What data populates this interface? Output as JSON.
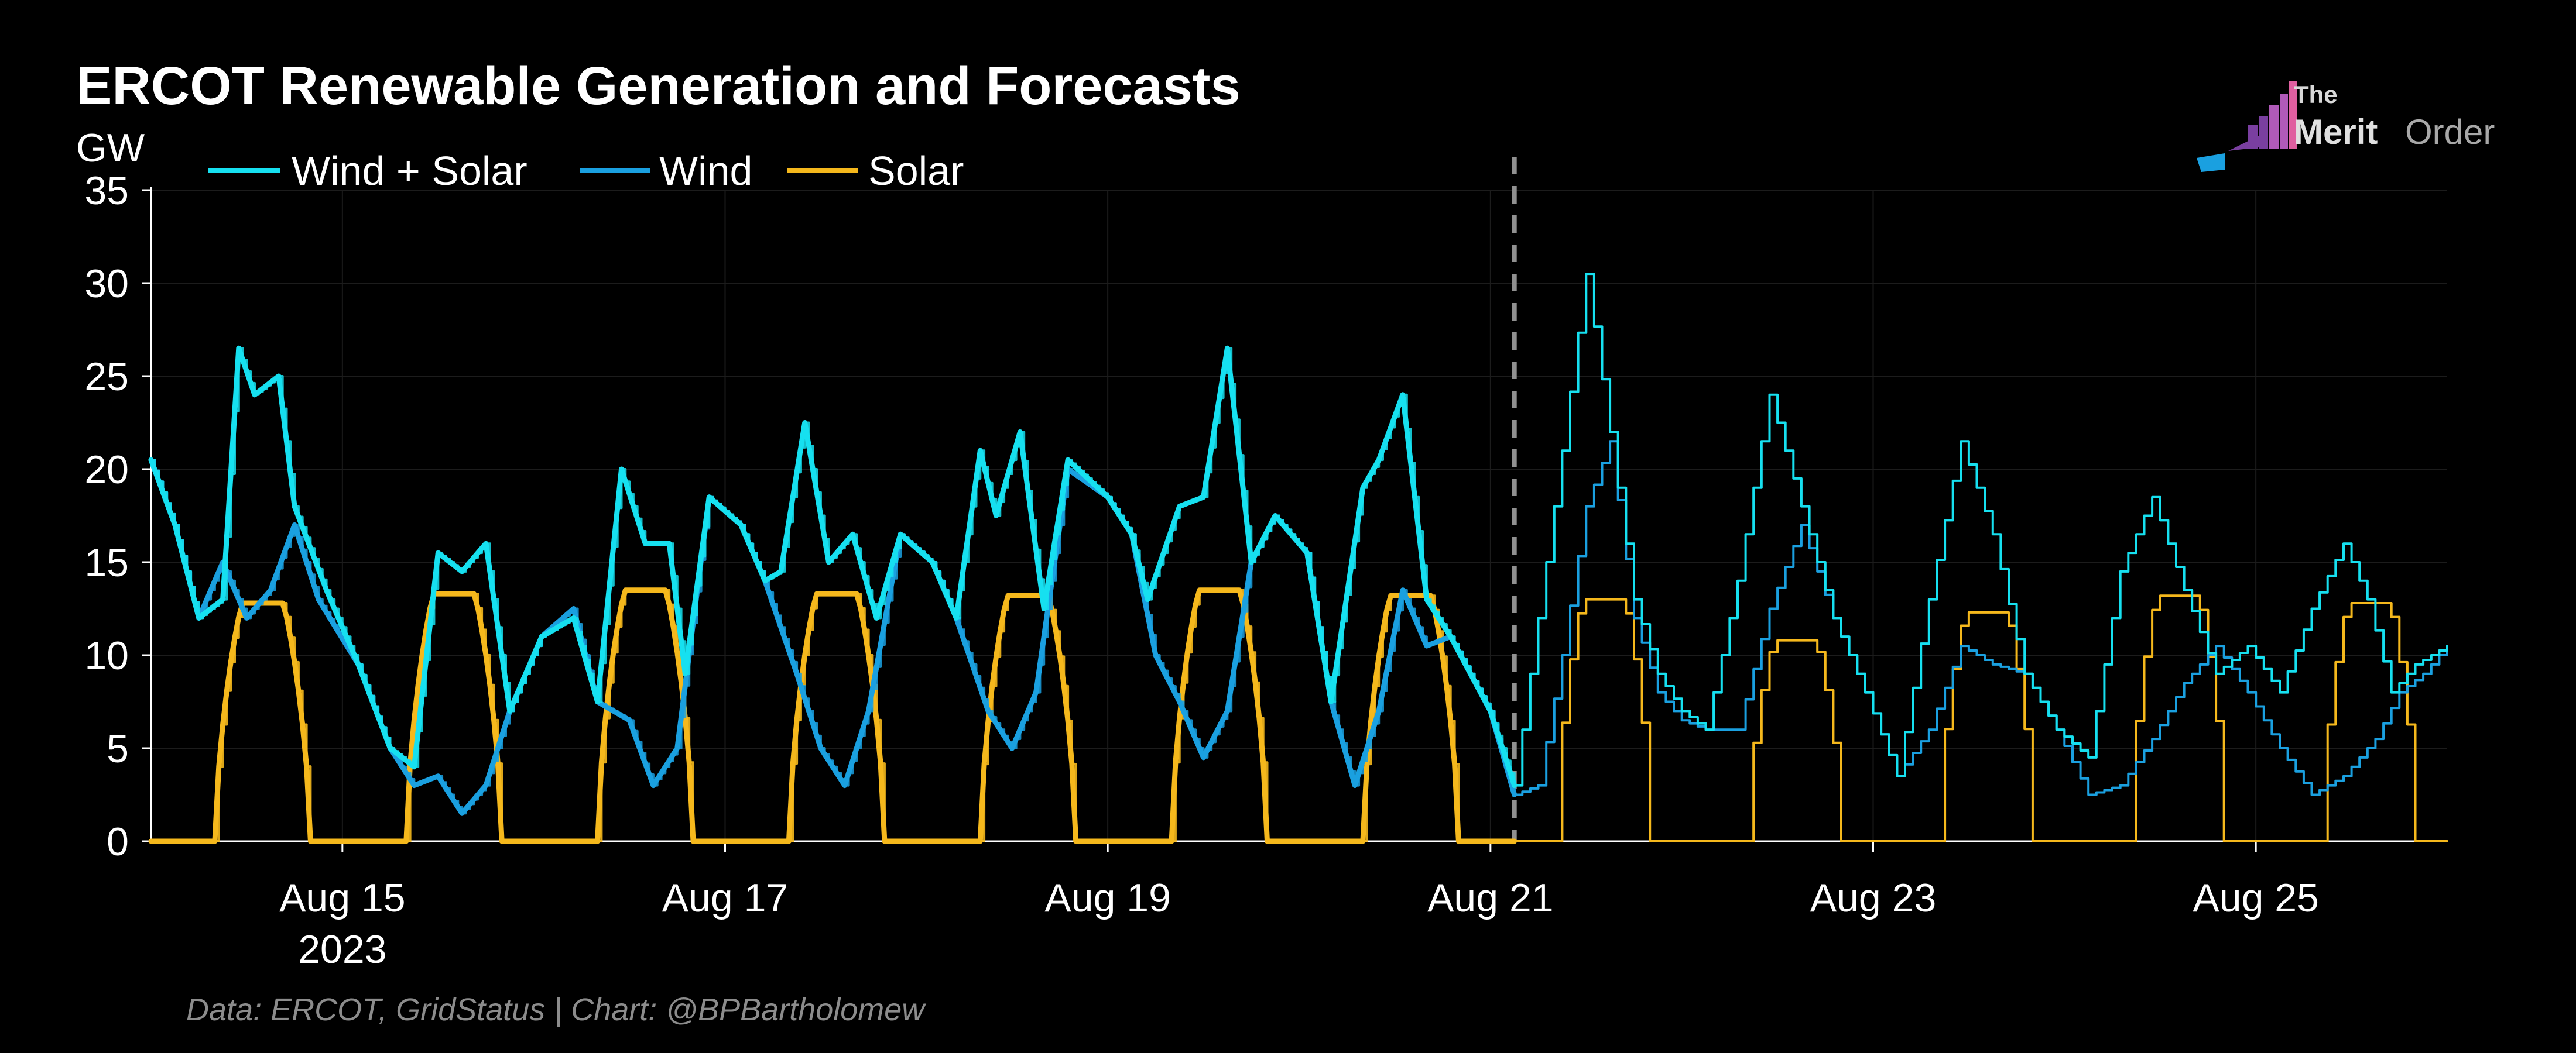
{
  "chart_data": {
    "type": "line",
    "title": "ERCOT Renewable Generation and Forecasts",
    "ylabel": "GW",
    "source": "Data: ERCOT, GridStatus | Chart: @BPBartholomew",
    "ylim": [
      0,
      35
    ],
    "yticks": [
      "0",
      "5",
      "10",
      "15",
      "20",
      "25",
      "30",
      "35"
    ],
    "xlim": [
      "2023-08-14",
      "2023-08-26"
    ],
    "x_ticks": [
      {
        "date": "2023-08-15",
        "label": "Aug 15",
        "sublabel": "2023"
      },
      {
        "date": "2023-08-17",
        "label": "Aug 17",
        "sublabel": ""
      },
      {
        "date": "2023-08-19",
        "label": "Aug 19",
        "sublabel": ""
      },
      {
        "date": "2023-08-21",
        "label": "Aug 21",
        "sublabel": ""
      },
      {
        "date": "2023-08-23",
        "label": "Aug 23",
        "sublabel": ""
      },
      {
        "date": "2023-08-25",
        "label": "Aug 25",
        "sublabel": ""
      }
    ],
    "forecast_start": "2023-08-21 03:00",
    "grid": true,
    "legend_position": "top-left",
    "series": [
      {
        "name": "Wind + Solar",
        "color": "#16e0f0",
        "actual": [
          [
            "2023-08-14 00:00",
            20.5
          ],
          [
            "2023-08-14 03:00",
            17.0
          ],
          [
            "2023-08-14 06:00",
            12.0
          ],
          [
            "2023-08-14 09:00",
            13.0
          ],
          [
            "2023-08-14 11:00",
            26.5
          ],
          [
            "2023-08-14 13:00",
            24.0
          ],
          [
            "2023-08-14 16:00",
            25.0
          ],
          [
            "2023-08-14 18:00",
            18.0
          ],
          [
            "2023-08-14 22:00",
            13.5
          ],
          [
            "2023-08-15 02:00",
            9.5
          ],
          [
            "2023-08-15 06:00",
            5.0
          ],
          [
            "2023-08-15 09:00",
            4.0
          ],
          [
            "2023-08-15 12:00",
            15.5
          ],
          [
            "2023-08-15 15:00",
            14.5
          ],
          [
            "2023-08-15 18:00",
            16.0
          ],
          [
            "2023-08-15 21:00",
            7.0
          ],
          [
            "2023-08-16 01:00",
            11.0
          ],
          [
            "2023-08-16 05:00",
            12.0
          ],
          [
            "2023-08-16 08:00",
            7.5
          ],
          [
            "2023-08-16 11:00",
            20.0
          ],
          [
            "2023-08-16 14:00",
            16.0
          ],
          [
            "2023-08-16 17:00",
            16.0
          ],
          [
            "2023-08-16 19:00",
            9.0
          ],
          [
            "2023-08-16 22:00",
            18.5
          ],
          [
            "2023-08-17 02:00",
            17.0
          ],
          [
            "2023-08-17 05:00",
            14.0
          ],
          [
            "2023-08-17 07:00",
            14.5
          ],
          [
            "2023-08-17 10:00",
            22.5
          ],
          [
            "2023-08-17 13:00",
            15.0
          ],
          [
            "2023-08-17 16:00",
            16.5
          ],
          [
            "2023-08-17 19:00",
            12.0
          ],
          [
            "2023-08-17 22:00",
            16.5
          ],
          [
            "2023-08-18 02:00",
            15.0
          ],
          [
            "2023-08-18 05:00",
            12.0
          ],
          [
            "2023-08-18 08:00",
            21.0
          ],
          [
            "2023-08-18 10:00",
            17.5
          ],
          [
            "2023-08-18 13:00",
            22.0
          ],
          [
            "2023-08-18 16:00",
            12.5
          ],
          [
            "2023-08-18 19:00",
            20.5
          ],
          [
            "2023-08-19 00:00",
            18.5
          ],
          [
            "2023-08-19 03:00",
            16.5
          ],
          [
            "2023-08-19 05:00",
            13.0
          ],
          [
            "2023-08-19 09:00",
            18.0
          ],
          [
            "2023-08-19 12:00",
            18.5
          ],
          [
            "2023-08-19 15:00",
            26.5
          ],
          [
            "2023-08-19 18:00",
            15.0
          ],
          [
            "2023-08-19 21:00",
            17.5
          ],
          [
            "2023-08-20 01:00",
            15.5
          ],
          [
            "2023-08-20 04:00",
            7.5
          ],
          [
            "2023-08-20 08:00",
            19.0
          ],
          [
            "2023-08-20 10:00",
            20.5
          ],
          [
            "2023-08-20 13:00",
            24.0
          ],
          [
            "2023-08-20 16:00",
            13.0
          ],
          [
            "2023-08-20 19:00",
            11.0
          ],
          [
            "2023-08-21 00:00",
            7.0
          ],
          [
            "2023-08-21 03:00",
            3.0
          ]
        ],
        "forecast": [
          [
            "2023-08-21 03:00",
            3.0
          ],
          [
            "2023-08-21 06:00",
            12.0
          ],
          [
            "2023-08-21 09:00",
            21.0
          ],
          [
            "2023-08-21 12:00",
            30.5
          ],
          [
            "2023-08-21 15:00",
            22.0
          ],
          [
            "2023-08-21 18:00",
            13.0
          ],
          [
            "2023-08-21 21:00",
            9.0
          ],
          [
            "2023-08-22 00:00",
            7.0
          ],
          [
            "2023-08-22 03:00",
            6.0
          ],
          [
            "2023-08-22 07:00",
            14.0
          ],
          [
            "2023-08-22 11:00",
            24.0
          ],
          [
            "2023-08-22 15:00",
            18.0
          ],
          [
            "2023-08-22 19:00",
            12.0
          ],
          [
            "2023-08-22 23:00",
            8.0
          ],
          [
            "2023-08-23 03:00",
            3.5
          ],
          [
            "2023-08-23 07:00",
            13.0
          ],
          [
            "2023-08-23 11:00",
            21.5
          ],
          [
            "2023-08-23 15:00",
            16.5
          ],
          [
            "2023-08-23 19:00",
            9.0
          ],
          [
            "2023-08-23 23:00",
            6.0
          ],
          [
            "2023-08-24 03:00",
            4.5
          ],
          [
            "2023-08-24 07:00",
            14.5
          ],
          [
            "2023-08-24 11:00",
            18.5
          ],
          [
            "2023-08-24 15:00",
            13.5
          ],
          [
            "2023-08-24 19:00",
            9.0
          ],
          [
            "2023-08-24 23:00",
            10.5
          ],
          [
            "2023-08-25 03:00",
            8.0
          ],
          [
            "2023-08-25 07:00",
            12.5
          ],
          [
            "2023-08-25 11:00",
            16.0
          ],
          [
            "2023-08-25 14:00",
            13.0
          ],
          [
            "2023-08-25 17:00",
            8.0
          ],
          [
            "2023-08-25 20:00",
            9.5
          ],
          [
            "2023-08-26 00:00",
            10.5
          ]
        ]
      },
      {
        "name": "Wind",
        "color": "#1aa0e0",
        "actual": [
          [
            "2023-08-14 00:00",
            20.5
          ],
          [
            "2023-08-14 03:00",
            17.0
          ],
          [
            "2023-08-14 06:00",
            12.0
          ],
          [
            "2023-08-14 09:00",
            15.0
          ],
          [
            "2023-08-14 12:00",
            12.0
          ],
          [
            "2023-08-14 15:00",
            13.5
          ],
          [
            "2023-08-14 18:00",
            17.0
          ],
          [
            "2023-08-14 21:00",
            13.0
          ],
          [
            "2023-08-15 02:00",
            9.5
          ],
          [
            "2023-08-15 06:00",
            5.0
          ],
          [
            "2023-08-15 09:00",
            3.0
          ],
          [
            "2023-08-15 12:00",
            3.5
          ],
          [
            "2023-08-15 15:00",
            1.5
          ],
          [
            "2023-08-15 18:00",
            3.0
          ],
          [
            "2023-08-15 21:00",
            7.0
          ],
          [
            "2023-08-16 01:00",
            11.0
          ],
          [
            "2023-08-16 05:00",
            12.5
          ],
          [
            "2023-08-16 08:00",
            7.5
          ],
          [
            "2023-08-16 12:00",
            6.5
          ],
          [
            "2023-08-16 15:00",
            3.0
          ],
          [
            "2023-08-16 18:00",
            5.0
          ],
          [
            "2023-08-16 22:00",
            18.5
          ],
          [
            "2023-08-17 02:00",
            17.0
          ],
          [
            "2023-08-17 05:00",
            14.0
          ],
          [
            "2023-08-17 09:00",
            9.0
          ],
          [
            "2023-08-17 12:00",
            5.0
          ],
          [
            "2023-08-17 15:00",
            3.0
          ],
          [
            "2023-08-17 18:00",
            7.0
          ],
          [
            "2023-08-17 22:00",
            16.5
          ],
          [
            "2023-08-18 02:00",
            15.0
          ],
          [
            "2023-08-18 05:00",
            12.0
          ],
          [
            "2023-08-18 09:00",
            7.0
          ],
          [
            "2023-08-18 12:00",
            5.0
          ],
          [
            "2023-08-18 15:00",
            8.0
          ],
          [
            "2023-08-18 19:00",
            20.0
          ],
          [
            "2023-08-19 00:00",
            18.5
          ],
          [
            "2023-08-19 03:00",
            16.5
          ],
          [
            "2023-08-19 06:00",
            10.0
          ],
          [
            "2023-08-19 09:00",
            7.5
          ],
          [
            "2023-08-19 12:00",
            4.5
          ],
          [
            "2023-08-19 15:00",
            7.0
          ],
          [
            "2023-08-19 18:00",
            15.0
          ],
          [
            "2023-08-19 21:00",
            17.5
          ],
          [
            "2023-08-20 01:00",
            15.5
          ],
          [
            "2023-08-20 04:00",
            7.5
          ],
          [
            "2023-08-20 07:00",
            3.0
          ],
          [
            "2023-08-20 10:00",
            7.0
          ],
          [
            "2023-08-20 13:00",
            13.5
          ],
          [
            "2023-08-20 16:00",
            10.5
          ],
          [
            "2023-08-20 19:00",
            11.0
          ],
          [
            "2023-08-21 00:00",
            7.0
          ],
          [
            "2023-08-21 03:00",
            2.5
          ]
        ],
        "forecast": [
          [
            "2023-08-21 03:00",
            2.5
          ],
          [
            "2023-08-21 06:00",
            3.0
          ],
          [
            "2023-08-21 09:00",
            10.0
          ],
          [
            "2023-08-21 12:00",
            18.0
          ],
          [
            "2023-08-21 15:00",
            21.5
          ],
          [
            "2023-08-21 18:00",
            12.0
          ],
          [
            "2023-08-21 21:00",
            8.0
          ],
          [
            "2023-08-22 00:00",
            6.5
          ],
          [
            "2023-08-22 03:00",
            6.0
          ],
          [
            "2023-08-22 07:00",
            6.0
          ],
          [
            "2023-08-22 11:00",
            12.5
          ],
          [
            "2023-08-22 15:00",
            17.0
          ],
          [
            "2023-08-22 19:00",
            12.0
          ],
          [
            "2023-08-22 23:00",
            8.0
          ],
          [
            "2023-08-23 03:00",
            3.5
          ],
          [
            "2023-08-23 07:00",
            6.0
          ],
          [
            "2023-08-23 11:00",
            10.5
          ],
          [
            "2023-08-23 15:00",
            9.5
          ],
          [
            "2023-08-23 19:00",
            9.0
          ],
          [
            "2023-08-23 23:00",
            6.0
          ],
          [
            "2023-08-24 03:00",
            2.5
          ],
          [
            "2023-08-24 07:00",
            3.0
          ],
          [
            "2023-08-24 11:00",
            5.5
          ],
          [
            "2023-08-24 15:00",
            8.5
          ],
          [
            "2023-08-24 19:00",
            10.5
          ],
          [
            "2023-08-24 23:00",
            8.0
          ],
          [
            "2023-08-25 03:00",
            5.0
          ],
          [
            "2023-08-25 07:00",
            2.5
          ],
          [
            "2023-08-25 11:00",
            3.5
          ],
          [
            "2023-08-25 15:00",
            5.5
          ],
          [
            "2023-08-25 18:00",
            8.0
          ],
          [
            "2023-08-25 21:00",
            9.0
          ],
          [
            "2023-08-26 00:00",
            10.5
          ]
        ]
      },
      {
        "name": "Solar",
        "color": "#f5b81c",
        "daily_peak_actual": [
          [
            "2023-08-14",
            12.8
          ],
          [
            "2023-08-15",
            13.3
          ],
          [
            "2023-08-16",
            13.5
          ],
          [
            "2023-08-17",
            13.3
          ],
          [
            "2023-08-18",
            13.2
          ],
          [
            "2023-08-19",
            13.5
          ],
          [
            "2023-08-20",
            13.2
          ]
        ],
        "daily_peak_forecast": [
          [
            "2023-08-21",
            13.0
          ],
          [
            "2023-08-22",
            10.8
          ],
          [
            "2023-08-23",
            12.3
          ],
          [
            "2023-08-24",
            13.2
          ],
          [
            "2023-08-25",
            12.8
          ]
        ],
        "daylight_hours": [
          8,
          20
        ]
      }
    ]
  },
  "branding": {
    "logo_line1": "The",
    "logo_line2a": "Merit",
    "logo_line2b": "Order",
    "logo_colors": [
      "#7a3fa0",
      "#b05ab8",
      "#e05fa0",
      "#1aa0e0"
    ]
  }
}
